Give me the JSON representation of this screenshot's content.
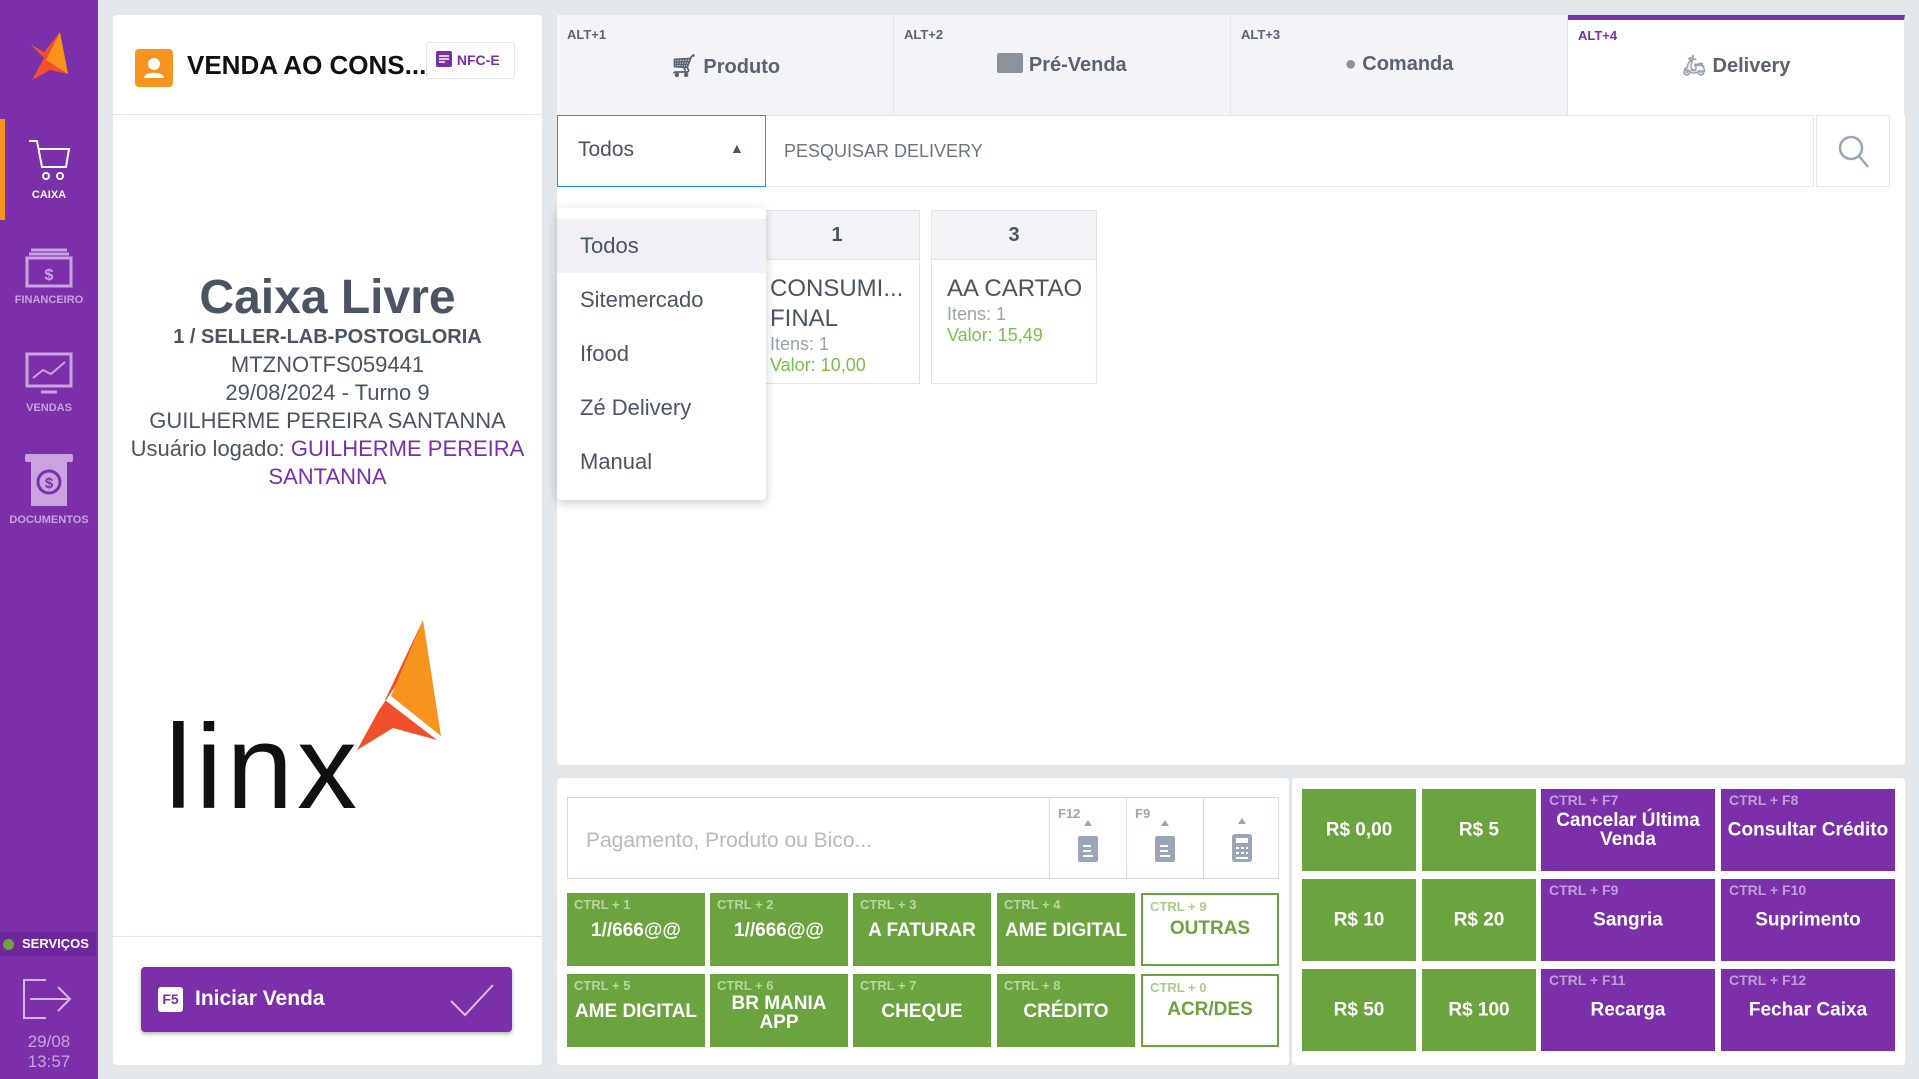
{
  "sidebar": {
    "items": [
      {
        "label": "CAIXA",
        "active": true
      },
      {
        "label": "FINANCEIRO"
      },
      {
        "label": "VENDAS"
      },
      {
        "label": "DOCUMENTOS"
      }
    ],
    "services": "SERVIÇOS",
    "date": "29/08",
    "time": "13:57"
  },
  "customer": {
    "name": "VENDA AO CONS...",
    "badge": "NFC-E"
  },
  "status": {
    "title": "Caixa Livre",
    "terminal": "1 / SELLER-LAB-POSTOGLORIA",
    "code": "MTZNOTFS059441",
    "shift": "29/08/2024 - Turno 9",
    "operator": "GUILHERME PEREIRA SANTANNA",
    "logged_label": "Usuário logado: ",
    "logged_user": "GUILHERME PEREIRA SANTANNA"
  },
  "logo_text": "linx",
  "start_sale": {
    "key": "F5",
    "label": "Iniciar Venda"
  },
  "tabs": [
    {
      "key": "ALT+1",
      "label": "Produto"
    },
    {
      "key": "ALT+2",
      "label": "Pré-Venda"
    },
    {
      "key": "ALT+3",
      "label": "Comanda"
    },
    {
      "key": "ALT+4",
      "label": "Delivery",
      "active": true
    }
  ],
  "filter": {
    "selected": "Todos",
    "options": [
      "Todos",
      "Sitemercado",
      "Ifood",
      "Zé Delivery",
      "Manual"
    ],
    "search_placeholder": "PESQUISAR DELIVERY"
  },
  "orders": [
    {
      "number": "1",
      "name": "CONSUMI... FINAL",
      "items": "Itens: 1",
      "value": "Valor: 10,00"
    },
    {
      "number": "3",
      "name": "AA CARTAO",
      "items": "Itens: 1",
      "value": "Valor: 15,49"
    }
  ],
  "entry": {
    "placeholder": "Pagamento, Produto ou Bico...",
    "keys": [
      "F12",
      "F9"
    ]
  },
  "payments": [
    {
      "key": "CTRL + 1",
      "label": "1//666@@"
    },
    {
      "key": "CTRL + 2",
      "label": "1//666@@"
    },
    {
      "key": "CTRL + 3",
      "label": "A FATURAR"
    },
    {
      "key": "CTRL + 4",
      "label": "AME DIGITAL"
    },
    {
      "key": "CTRL + 9",
      "label": "OUTRAS"
    },
    {
      "key": "CTRL + 5",
      "label": "AME DIGITAL"
    },
    {
      "key": "CTRL + 6",
      "label": "BR MANIA APP"
    },
    {
      "key": "CTRL + 7",
      "label": "CHEQUE"
    },
    {
      "key": "CTRL + 8",
      "label": "CRÉDITO"
    },
    {
      "key": "CTRL + 0",
      "label": "ACR/DES"
    }
  ],
  "quick": {
    "cash": [
      "R$ 0,00",
      "R$ 5",
      "R$ 10",
      "R$ 20",
      "R$ 50",
      "R$ 100"
    ],
    "actions": [
      {
        "key": "CTRL + F7",
        "label": "Cancelar Última Venda"
      },
      {
        "key": "CTRL + F8",
        "label": "Consultar Crédito"
      },
      {
        "key": "CTRL + F9",
        "label": "Sangria"
      },
      {
        "key": "CTRL + F10",
        "label": "Suprimento"
      },
      {
        "key": "CTRL + F11",
        "label": "Recarga"
      },
      {
        "key": "CTRL + F12",
        "label": "Fechar Caixa"
      }
    ]
  },
  "colors": {
    "brand": "#7b2fa8",
    "payment": "#6ba33f",
    "accent": "#f7941d"
  }
}
